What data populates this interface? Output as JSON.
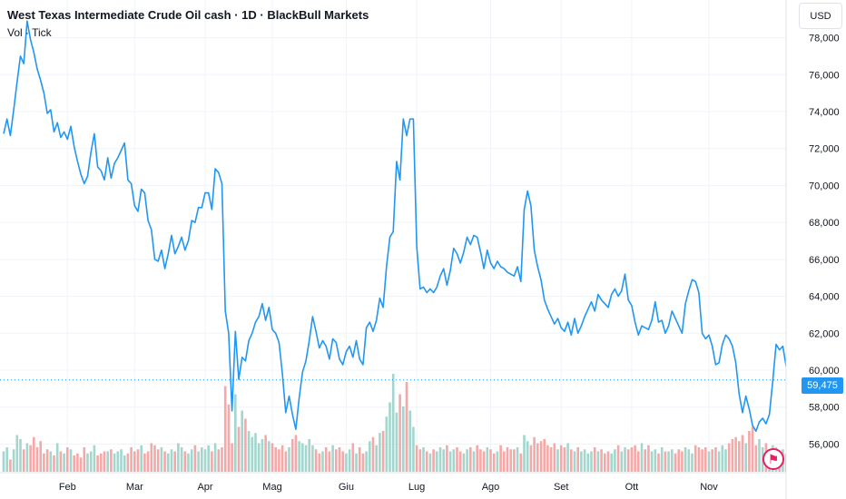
{
  "header": {
    "title": "West Texas Intermediate Crude Oil cash · 1D · BlackBull Markets",
    "subtitle": "Vol · Tick",
    "currency": "USD"
  },
  "chart_data": {
    "type": "line",
    "title": "West Texas Intermediate Crude Oil cash · 1D · BlackBull Markets",
    "ylim": [
      54500,
      79500
    ],
    "yticks": [
      56000,
      58000,
      60000,
      62000,
      64000,
      66000,
      68000,
      70000,
      72000,
      74000,
      76000,
      78000
    ],
    "ytick_labels": [
      "56,000",
      "58,000",
      "60,000",
      "62,000",
      "64,000",
      "66,000",
      "68,000",
      "70,000",
      "72,000",
      "74,000",
      "76,000",
      "78,000"
    ],
    "months": [
      {
        "label": "Feb",
        "day": 19
      },
      {
        "label": "Mar",
        "day": 39
      },
      {
        "label": "Apr",
        "day": 60
      },
      {
        "label": "Mag",
        "day": 80
      },
      {
        "label": "Giu",
        "day": 102
      },
      {
        "label": "Lug",
        "day": 123
      },
      {
        "label": "Ago",
        "day": 145
      },
      {
        "label": "Set",
        "day": 166
      },
      {
        "label": "Ott",
        "day": 187
      },
      {
        "label": "Nov",
        "day": 210
      }
    ],
    "last_price": 59475,
    "last_price_label": "59,475",
    "series": [
      {
        "values": [
          72800,
          73600,
          72700,
          74100,
          75600,
          77000,
          76600,
          78900,
          77900,
          77200,
          76300,
          75700,
          75000,
          73900,
          74100,
          72900,
          73400,
          72600,
          72900,
          72500,
          73200,
          72100,
          71300,
          70600,
          70100,
          70500,
          71800,
          72800,
          71000,
          70800,
          70300,
          71500,
          70400,
          71200,
          71500,
          71900,
          72300,
          70300,
          70100,
          68900,
          68600,
          69800,
          69600,
          68100,
          67600,
          66000,
          65900,
          66500,
          65500,
          66300,
          67300,
          66300,
          66700,
          67200,
          66500,
          67000,
          68100,
          68000,
          68800,
          68800,
          69600,
          69600,
          68700,
          70900,
          70700,
          70100,
          63200,
          62000,
          57800,
          62100,
          59500,
          60700,
          60500,
          61600,
          62000,
          62600,
          62900,
          63600,
          62700,
          63400,
          62200,
          62000,
          61500,
          59800,
          57700,
          58600,
          57600,
          56800,
          58500,
          59900,
          60500,
          61600,
          62900,
          62100,
          61200,
          61600,
          61300,
          60600,
          61700,
          61500,
          60600,
          60300,
          61000,
          61300,
          60700,
          61600,
          60600,
          60300,
          62300,
          62600,
          62100,
          62700,
          63900,
          63400,
          65600,
          67200,
          67500,
          71300,
          70300,
          73600,
          72700,
          73600,
          73600,
          66700,
          64400,
          64500,
          64200,
          64400,
          64200,
          64500,
          65100,
          65500,
          64600,
          65400,
          66600,
          66300,
          65800,
          66400,
          67200,
          66800,
          67300,
          67200,
          66400,
          65500,
          66500,
          65800,
          65500,
          65900,
          65600,
          65500,
          65300,
          65200,
          65100,
          65600,
          64800,
          68700,
          69700,
          68900,
          66500,
          65600,
          64900,
          63800,
          63300,
          62900,
          62500,
          62800,
          62300,
          62100,
          62600,
          61900,
          62800,
          62000,
          62400,
          62900,
          63300,
          63700,
          63200,
          64100,
          63800,
          63600,
          63400,
          64100,
          64400,
          64000,
          64300,
          65200,
          63800,
          63500,
          62600,
          61900,
          62400,
          62300,
          62200,
          62700,
          63700,
          62600,
          62700,
          62000,
          62400,
          63200,
          62800,
          62400,
          62000,
          63600,
          64300,
          64900,
          64800,
          64200,
          62000,
          61700,
          61900,
          61300,
          60300,
          60400,
          61400,
          61900,
          61700,
          61300,
          60400,
          58700,
          57700,
          58600,
          57900,
          57000,
          56700,
          57200,
          57400,
          57100,
          57600,
          59400,
          61400,
          61100,
          61300,
          60200,
          60300,
          59900,
          60600,
          60700,
          60400,
          59500,
          59300,
          59500,
          59475
        ]
      },
      {
        "name": "Vol",
        "values": [
          10,
          12,
          6,
          11,
          18,
          16,
          11,
          14,
          13,
          17,
          12,
          15,
          9,
          11,
          10,
          8,
          14,
          10,
          9,
          12,
          11,
          8,
          9,
          7,
          12,
          9,
          10,
          13,
          8,
          9,
          10,
          10,
          11,
          9,
          10,
          11,
          8,
          9,
          12,
          10,
          11,
          13,
          9,
          10,
          14,
          13,
          11,
          12,
          10,
          9,
          11,
          10,
          14,
          12,
          10,
          9,
          11,
          13,
          10,
          12,
          11,
          13,
          10,
          14,
          11,
          12,
          42,
          33,
          14,
          38,
          22,
          30,
          26,
          20,
          17,
          19,
          14,
          16,
          18,
          15,
          14,
          12,
          11,
          13,
          10,
          12,
          16,
          18,
          15,
          14,
          13,
          16,
          13,
          11,
          9,
          10,
          12,
          10,
          13,
          11,
          12,
          10,
          9,
          11,
          14,
          9,
          12,
          9,
          10,
          15,
          17,
          13,
          19,
          20,
          27,
          34,
          48,
          29,
          38,
          32,
          44,
          30,
          22,
          13,
          11,
          12,
          10,
          9,
          11,
          10,
          12,
          11,
          13,
          10,
          11,
          12,
          10,
          9,
          11,
          12,
          10,
          13,
          11,
          10,
          12,
          11,
          9,
          10,
          13,
          10,
          12,
          11,
          11,
          12,
          9,
          18,
          15,
          13,
          17,
          14,
          15,
          16,
          13,
          12,
          14,
          11,
          13,
          12,
          14,
          11,
          10,
          12,
          10,
          11,
          9,
          10,
          12,
          10,
          11,
          9,
          10,
          9,
          11,
          13,
          10,
          12,
          11,
          12,
          13,
          10,
          14,
          11,
          13,
          10,
          11,
          9,
          12,
          10,
          10,
          11,
          9,
          11,
          10,
          12,
          11,
          9,
          13,
          12,
          11,
          12,
          10,
          11,
          12,
          10,
          13,
          11,
          14,
          16,
          17,
          15,
          18,
          14,
          20,
          22,
          13,
          16,
          12,
          14,
          11,
          13,
          12,
          10,
          11,
          9,
          12,
          10,
          11,
          9,
          10,
          9,
          11,
          10,
          10,
          9,
          8,
          9
        ]
      }
    ],
    "colors": {
      "line": "#2196f3",
      "vol_up": "#a3d6cd",
      "vol_down": "#f5a8a8",
      "grid": "#f0f3fa"
    },
    "grid": true
  }
}
